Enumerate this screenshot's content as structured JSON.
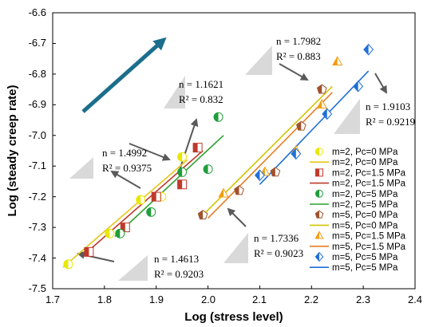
{
  "chart_data": {
    "type": "scatter",
    "xlabel": "Log (stress level)",
    "ylabel": "Log (steady creep rate)",
    "xlim": [
      1.7,
      2.4
    ],
    "ylim": [
      -7.5,
      -6.6
    ],
    "xticks": [
      "1.7",
      "1.8",
      "1.9",
      "2.0",
      "2.1",
      "2.2",
      "2.3",
      "2.4"
    ],
    "yticks": [
      "-6.6",
      "-6.7",
      "-6.8",
      "-6.9",
      "-7.0",
      "-7.1",
      "-7.2",
      "-7.3",
      "-7.4",
      "-7.5"
    ],
    "grid": false,
    "legend_position": "bottom-right",
    "series": [
      {
        "name": "m=2, Pc=0 MPa",
        "kind": "points",
        "marker": "circle-half",
        "color": "#e8e800",
        "points": [
          [
            1.73,
            -7.42
          ],
          [
            1.81,
            -7.32
          ],
          [
            1.87,
            -7.21
          ],
          [
            1.91,
            -7.2
          ],
          [
            1.95,
            -7.07
          ]
        ]
      },
      {
        "name": "m=2, Pc=0 MPa",
        "kind": "fit",
        "color": "#e6c619",
        "x": [
          1.72,
          1.96
        ],
        "y": [
          -7.43,
          -7.08
        ]
      },
      {
        "name": "m=2, Pc=1.5 MPa",
        "kind": "points",
        "marker": "square-half",
        "color": "#c0392b",
        "points": [
          [
            1.77,
            -7.38
          ],
          [
            1.84,
            -7.3
          ],
          [
            1.9,
            -7.2
          ],
          [
            1.95,
            -7.16
          ],
          [
            1.98,
            -7.04
          ]
        ]
      },
      {
        "name": "m=2, Pc=1.5 MPa",
        "kind": "fit",
        "color": "#c0392b",
        "x": [
          1.76,
          1.99
        ],
        "y": [
          -7.39,
          -7.05
        ]
      },
      {
        "name": "m=2, Pc=5 MPa",
        "kind": "points",
        "marker": "circle-half",
        "color": "#1e9e3a",
        "points": [
          [
            1.83,
            -7.32
          ],
          [
            1.89,
            -7.25
          ],
          [
            1.95,
            -7.12
          ],
          [
            2.0,
            -7.11
          ],
          [
            2.02,
            -6.94
          ]
        ]
      },
      {
        "name": "m=2, Pc=5 MPa",
        "kind": "fit",
        "color": "#2ca02c",
        "x": [
          1.82,
          2.03
        ],
        "y": [
          -7.33,
          -7.0
        ]
      },
      {
        "name": "m=5, Pc=0 MPa",
        "kind": "points",
        "marker": "pentagon-half",
        "color": "#a0522d",
        "points": [
          [
            1.99,
            -7.26
          ],
          [
            2.06,
            -7.18
          ],
          [
            2.13,
            -7.12
          ],
          [
            2.18,
            -6.97
          ],
          [
            2.22,
            -6.85
          ]
        ]
      },
      {
        "name": "m=5, Pc=0 MPa",
        "kind": "fit",
        "color": "#d4c400",
        "x": [
          1.99,
          2.24
        ],
        "y": [
          -7.26,
          -6.84
        ]
      },
      {
        "name": "m=5, Pc=1.5 MPa",
        "kind": "points",
        "marker": "triangle-half",
        "color": "#f39c12",
        "points": [
          [
            2.03,
            -7.19
          ],
          [
            2.11,
            -7.12
          ],
          [
            2.17,
            -7.05
          ],
          [
            2.22,
            -6.9
          ],
          [
            2.25,
            -6.76
          ]
        ]
      },
      {
        "name": "m=5, Pc=1.5 MPa",
        "kind": "fit",
        "color": "#e67e22",
        "x": [
          2.0,
          2.24
        ],
        "y": [
          -7.27,
          -6.86
        ]
      },
      {
        "name": "m=5, Pc=5 MPa",
        "kind": "points",
        "marker": "diamond-half",
        "color": "#1f6fd6",
        "points": [
          [
            2.1,
            -7.13
          ],
          [
            2.17,
            -7.06
          ],
          [
            2.23,
            -6.93
          ],
          [
            2.29,
            -6.84
          ],
          [
            2.31,
            -6.72
          ]
        ]
      },
      {
        "name": "m=5, Pc=5 MPa",
        "kind": "fit",
        "color": "#1f6fd6",
        "x": [
          2.1,
          2.31
        ],
        "y": [
          -7.16,
          -6.79
        ]
      }
    ],
    "annotations": [
      {
        "n": "n = 1.4992",
        "r2": "R² = 0.9375"
      },
      {
        "n": "n = 1.1621",
        "r2": "R² = 0.832"
      },
      {
        "n": "n = 1.4613",
        "r2": "R² = 0.9203"
      },
      {
        "n": "n = 1.7982",
        "r2": "R² = 0.883"
      },
      {
        "n": "n = 1.9103",
        "r2": "R² = 0.9219"
      },
      {
        "n": "n = 1.7336",
        "r2": "R² = 0.9023"
      }
    ],
    "colors": {
      "trend_arrow": "#1b6e8c",
      "pointer_arrow": "#5a5a5a",
      "slope_triangle": "#d9d9d9"
    }
  }
}
